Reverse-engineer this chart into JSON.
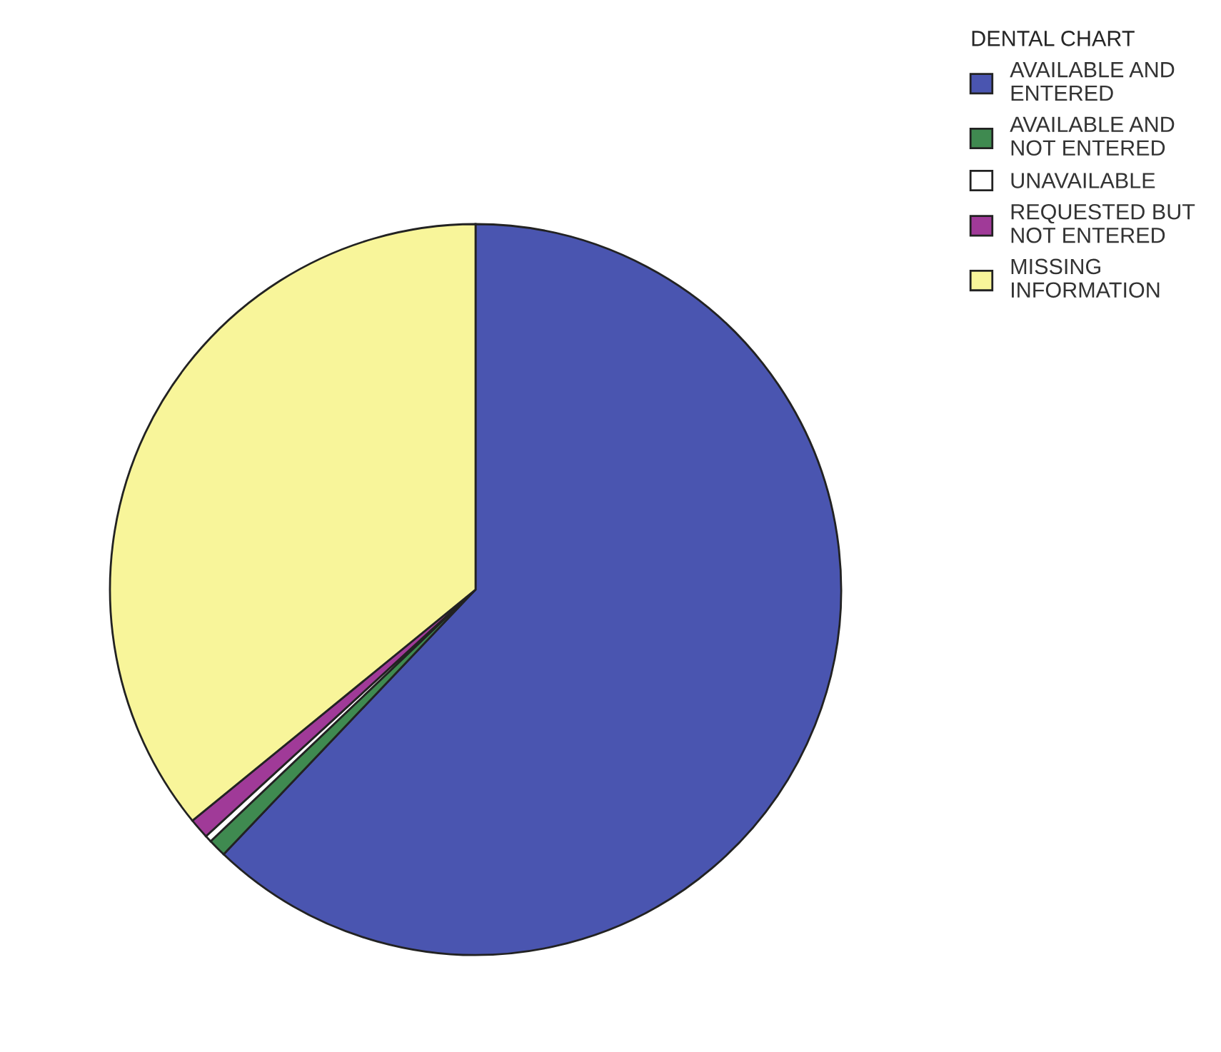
{
  "chart_data": {
    "type": "pie",
    "legend_title": "DENTAL CHART",
    "categories": [
      "AVAILABLE AND\nENTERED",
      "AVAILABLE AND\nNOT ENTERED",
      "UNAVAILABLE",
      "REQUESTED BUT\nNOT ENTERED",
      "MISSING\nINFORMATION"
    ],
    "values": [
      62.1,
      0.8,
      0.3,
      0.9,
      35.9
    ],
    "colors": [
      "#4a55b0",
      "#3f8a50",
      "#ffffff",
      "#a03a98",
      "#f8f59a"
    ],
    "legend": "top right"
  }
}
